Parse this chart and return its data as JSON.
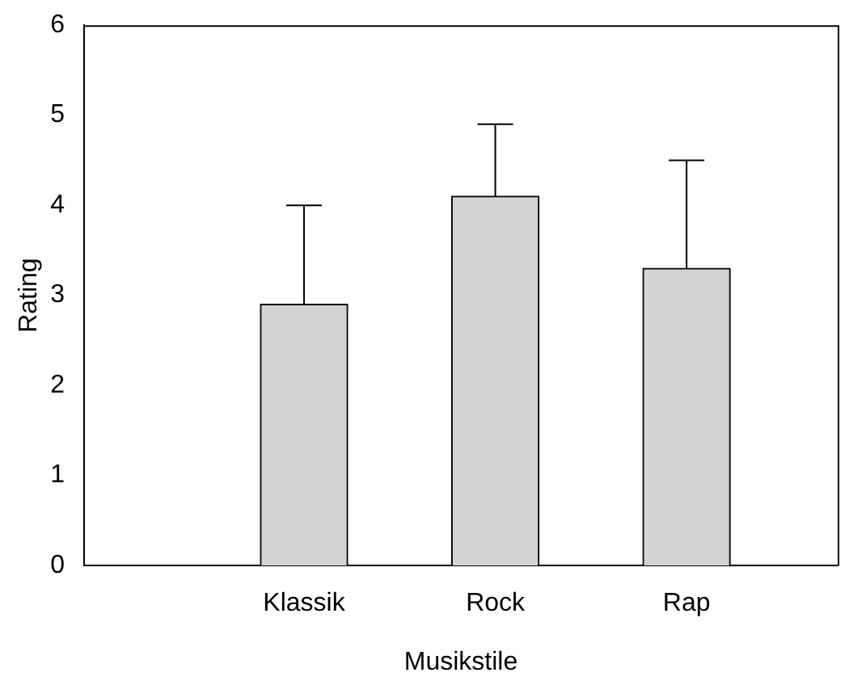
{
  "chart_data": {
    "type": "bar",
    "xlabel": "Musikstile",
    "ylabel": "Rating",
    "categories": [
      "Klassik",
      "Rock",
      "Rap"
    ],
    "values": [
      2.9,
      4.1,
      3.3
    ],
    "errors": [
      [
        2.9,
        4.0
      ],
      [
        4.1,
        4.9
      ],
      [
        3.3,
        4.5
      ]
    ],
    "color": "#d3d3d3",
    "ylim": [
      0,
      6
    ],
    "yticks": [
      0,
      1,
      2,
      3,
      4,
      5,
      6
    ],
    "grid": false
  }
}
